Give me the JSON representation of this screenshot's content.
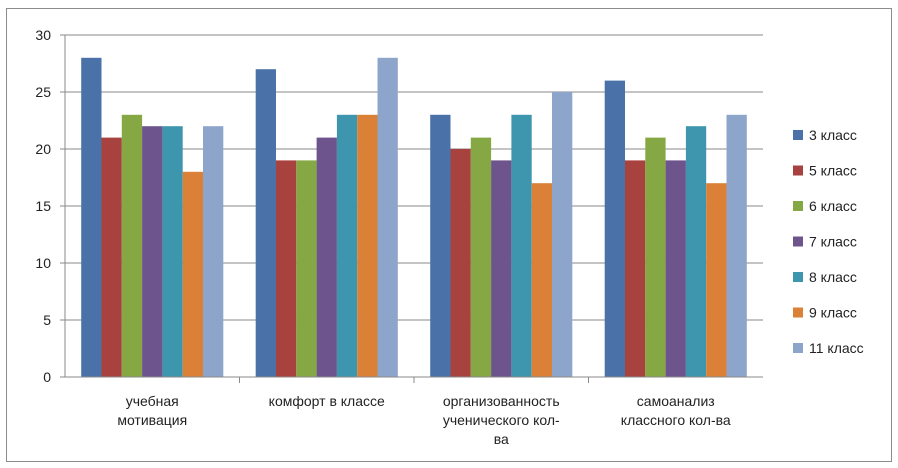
{
  "chart_data": {
    "type": "bar",
    "categories": [
      [
        "учебная",
        "мотивация"
      ],
      [
        "комфорт в классе"
      ],
      [
        "организованность",
        "ученического кол-",
        "ва"
      ],
      [
        "самоанализ",
        "классного кол-ва"
      ]
    ],
    "series": [
      {
        "name": "3 класс",
        "color": "#4a72a8",
        "values": [
          28,
          27,
          23,
          26
        ]
      },
      {
        "name": "5 класс",
        "color": "#a8423f",
        "values": [
          21,
          19,
          20,
          19
        ]
      },
      {
        "name": "6 класс",
        "color": "#86a844",
        "values": [
          23,
          19,
          21,
          21
        ]
      },
      {
        "name": "7 класс",
        "color": "#6e548d",
        "values": [
          22,
          21,
          19,
          19
        ]
      },
      {
        "name": "8 класс",
        "color": "#3d96ae",
        "values": [
          22,
          23,
          23,
          22
        ]
      },
      {
        "name": "9 класс",
        "color": "#da8137",
        "values": [
          18,
          23,
          17,
          17
        ]
      },
      {
        "name": "11 класс",
        "color": "#8ea5cb",
        "values": [
          22,
          28,
          25,
          23
        ]
      }
    ],
    "ylim": [
      0,
      30
    ],
    "yticks": [
      0,
      5,
      10,
      15,
      20,
      25,
      30
    ],
    "grid": true,
    "legend_position": "right",
    "title": "",
    "xlabel": "",
    "ylabel": ""
  }
}
